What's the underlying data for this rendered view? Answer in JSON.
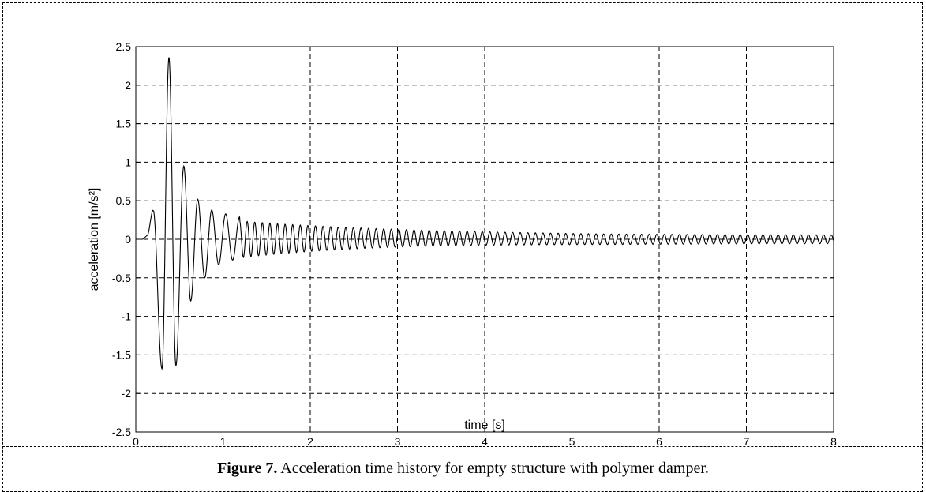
{
  "chart_data": {
    "type": "line",
    "title": "",
    "xlabel": "time [s]",
    "ylabel": "acceleration [m/s²]",
    "xlim": [
      0,
      8
    ],
    "ylim": [
      -2.5,
      2.5
    ],
    "xticks": [
      "0",
      "1",
      "2",
      "3",
      "4",
      "5",
      "6",
      "7",
      "8"
    ],
    "yticks": [
      "2.5",
      "2",
      "1.5",
      "1",
      "0.5",
      "0",
      "-0.5",
      "-1",
      "-1.5",
      "-2",
      "-2.5"
    ],
    "grid": true,
    "peaks": [
      {
        "t": 0.2,
        "a": 0.38
      },
      {
        "t": 0.3,
        "a": -1.68
      },
      {
        "t": 0.38,
        "a": 2.36
      },
      {
        "t": 0.46,
        "a": -1.64
      },
      {
        "t": 0.55,
        "a": 0.95
      },
      {
        "t": 0.63,
        "a": -0.8
      },
      {
        "t": 0.71,
        "a": 0.52
      },
      {
        "t": 0.79,
        "a": -0.5
      },
      {
        "t": 0.87,
        "a": 0.38
      },
      {
        "t": 0.95,
        "a": -0.33
      },
      {
        "t": 1.03,
        "a": 0.33
      },
      {
        "t": 1.11,
        "a": -0.27
      },
      {
        "t": 1.19,
        "a": 0.29
      }
    ],
    "tail": {
      "start_t": 1.19,
      "end_t": 8.0,
      "frequency_hz": 11.5,
      "amplitude_start": 0.24,
      "amplitude_end": 0.055,
      "offset_start": 0.0,
      "offset_mid": 0.02,
      "offset_end": 0.0
    },
    "series": [
      {
        "color": "#000000"
      }
    ]
  },
  "caption": {
    "label": "Figure 7.",
    "text": " Acceleration time history for empty structure with polymer damper."
  }
}
